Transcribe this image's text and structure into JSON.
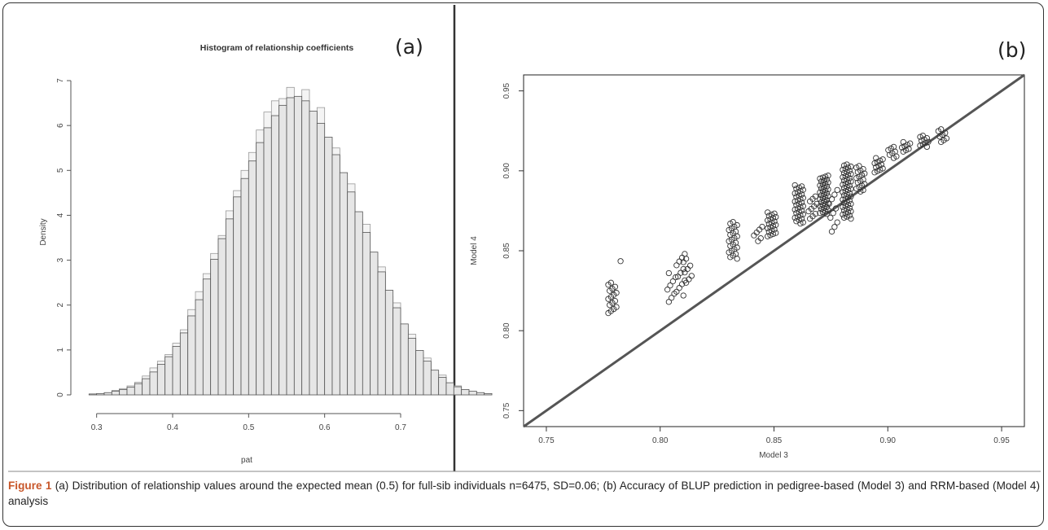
{
  "figure": {
    "caption_label": "Figure 1",
    "caption_text": " (a) Distribution of relationship values around the expected mean (0.5) for full-sib individuals n=6475, SD=0.06; (b) Accuracy of BLUP prediction in pedigree-based (Model 3) and RRM-based (Model 4) analysis",
    "colors": {
      "border": "#333333",
      "caption_label": "#c8572a",
      "bar_front": "#e6e6e6",
      "bar_back": "#f4f4f4",
      "points": "#333333",
      "identity_line": "#555555"
    }
  },
  "chart_data": [
    {
      "type": "bar",
      "panel_tag": "(a)",
      "title": "Histogram of relationship coefficients",
      "xlabel": "pat",
      "ylabel": "Density",
      "xlim": [
        0.28,
        0.73
      ],
      "ylim": [
        0,
        7.2
      ],
      "xticks": [
        "0.3",
        "0.4",
        "0.5",
        "0.6",
        "0.7"
      ],
      "yticks": [
        "0",
        "1",
        "2",
        "3",
        "4",
        "5",
        "6",
        "7"
      ],
      "bin_width": 0.01,
      "bin_start": 0.29,
      "series": [
        {
          "values": [
            0.02,
            0.03,
            0.05,
            0.08,
            0.12,
            0.17,
            0.25,
            0.36,
            0.51,
            0.68,
            0.85,
            1.08,
            1.38,
            1.76,
            2.12,
            2.58,
            3.02,
            3.48,
            3.92,
            4.41,
            4.82,
            5.21,
            5.62,
            5.95,
            6.22,
            6.45,
            6.62,
            6.65,
            6.55,
            6.32,
            6.05,
            5.74,
            5.35,
            4.95,
            4.52,
            4.08,
            3.62,
            3.18,
            2.74,
            2.33,
            1.94,
            1.58,
            1.26,
            0.99,
            0.75,
            0.55,
            0.39,
            0.27,
            0.18,
            0.12,
            0.08,
            0.05,
            0.03
          ]
        },
        {
          "values": [
            0.01,
            0.02,
            0.04,
            0.1,
            0.14,
            0.2,
            0.28,
            0.42,
            0.6,
            0.75,
            0.9,
            1.15,
            1.45,
            1.9,
            2.3,
            2.7,
            3.15,
            3.55,
            4.1,
            4.55,
            5.0,
            5.4,
            5.9,
            6.3,
            6.55,
            6.6,
            6.85,
            6.45,
            6.8,
            6.2,
            6.4,
            5.6,
            5.5,
            4.8,
            4.7,
            3.9,
            3.8,
            3.0,
            2.85,
            2.2,
            2.05,
            1.45,
            1.35,
            0.9,
            0.82,
            0.48,
            0.44,
            0.22,
            0.2,
            0.1,
            0.07,
            0.04,
            0.02
          ]
        }
      ]
    },
    {
      "type": "scatter",
      "panel_tag": "(b)",
      "xlabel": "Model 3",
      "ylabel": "Model 4",
      "xlim": [
        0.74,
        0.96
      ],
      "ylim": [
        0.74,
        0.96
      ],
      "xticks": [
        "0.75",
        "0.80",
        "0.85",
        "0.90",
        "0.95"
      ],
      "yticks": [
        "0.75",
        "0.80",
        "0.85",
        "0.90",
        "0.95"
      ],
      "reference_line": "y = x",
      "clusters": [
        {
          "x": 0.779,
          "y": [
            0.811,
            0.83
          ],
          "n": 16
        },
        {
          "x": 0.782,
          "y": [
            0.843,
            0.844
          ],
          "n": 1
        },
        {
          "x": 0.805,
          "y": [
            0.818,
            0.836
          ],
          "n": 8
        },
        {
          "x": 0.809,
          "y": [
            0.822,
            0.848
          ],
          "n": 12
        },
        {
          "x": 0.812,
          "y": [
            0.83,
            0.845
          ],
          "n": 8
        },
        {
          "x": 0.832,
          "y": [
            0.845,
            0.868
          ],
          "n": 24
        },
        {
          "x": 0.843,
          "y": [
            0.856,
            0.865
          ],
          "n": 6
        },
        {
          "x": 0.849,
          "y": [
            0.859,
            0.874
          ],
          "n": 22
        },
        {
          "x": 0.861,
          "y": [
            0.867,
            0.891
          ],
          "n": 34
        },
        {
          "x": 0.867,
          "y": [
            0.87,
            0.884
          ],
          "n": 10
        },
        {
          "x": 0.872,
          "y": [
            0.873,
            0.897
          ],
          "n": 40
        },
        {
          "x": 0.876,
          "y": [
            0.862,
            0.888
          ],
          "n": 10
        },
        {
          "x": 0.882,
          "y": [
            0.87,
            0.904
          ],
          "n": 52
        },
        {
          "x": 0.888,
          "y": [
            0.887,
            0.903
          ],
          "n": 18
        },
        {
          "x": 0.896,
          "y": [
            0.899,
            0.908
          ],
          "n": 12
        },
        {
          "x": 0.902,
          "y": [
            0.908,
            0.915
          ],
          "n": 8
        },
        {
          "x": 0.908,
          "y": [
            0.912,
            0.918
          ],
          "n": 8
        },
        {
          "x": 0.916,
          "y": [
            0.915,
            0.922
          ],
          "n": 10
        },
        {
          "x": 0.924,
          "y": [
            0.918,
            0.926
          ],
          "n": 8
        }
      ]
    }
  ]
}
